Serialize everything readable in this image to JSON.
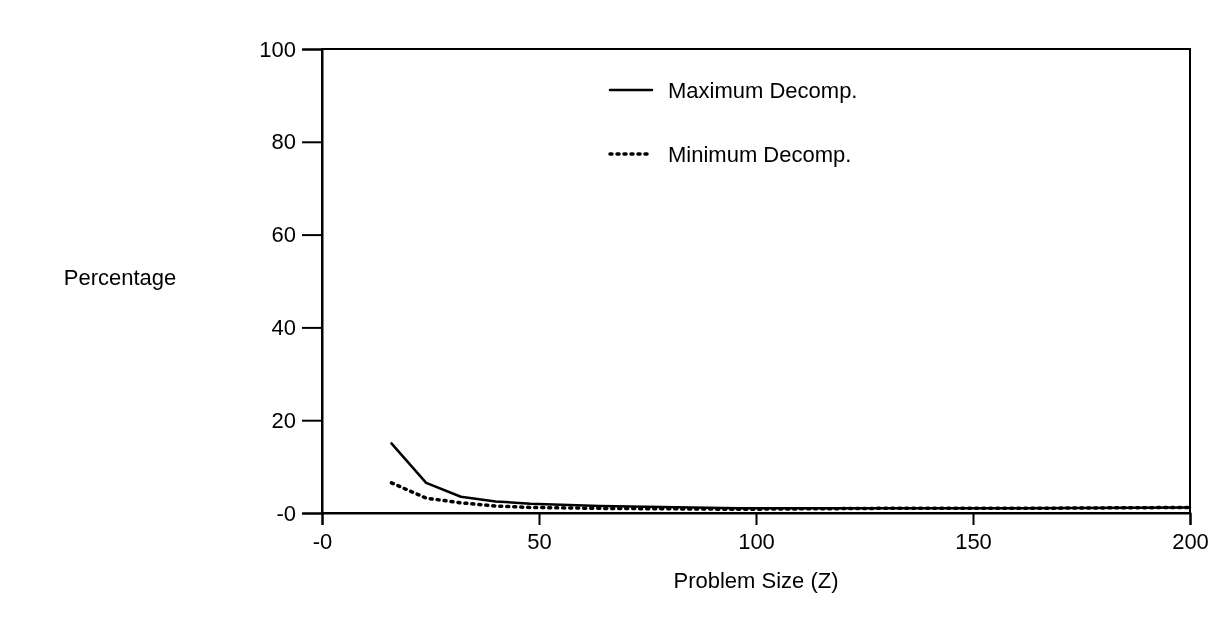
{
  "chart_data": {
    "type": "line",
    "xlabel": "Problem Size (Z)",
    "ylabel": "Percentage",
    "xlim": [
      0,
      200
    ],
    "ylim": [
      0,
      100
    ],
    "xticks": [
      {
        "value": 0,
        "label": "-0"
      },
      50,
      100,
      150,
      200
    ],
    "yticks": [
      {
        "value": 0,
        "label": "-0"
      },
      20,
      40,
      60,
      80,
      100
    ],
    "legend": "top",
    "grid": false,
    "marker": "none",
    "series": [
      {
        "name": "Maximum Decomp.",
        "color": "#000000",
        "line_style": "solid",
        "x": [
          16,
          24,
          32,
          40,
          48,
          64,
          96,
          128,
          160,
          200
        ],
        "values": [
          15,
          6.5,
          3.5,
          2.5,
          2,
          1.5,
          1,
          1,
          1,
          1.2
        ]
      },
      {
        "name": "Minimum Decomp.",
        "color": "#000000",
        "line_style": "dotted",
        "x": [
          16,
          24,
          32,
          40,
          48,
          64,
          96,
          128,
          160,
          200
        ],
        "values": [
          6.5,
          3.2,
          2.2,
          1.5,
          1.2,
          1,
          0.8,
          1,
          1,
          1.2
        ]
      }
    ]
  }
}
